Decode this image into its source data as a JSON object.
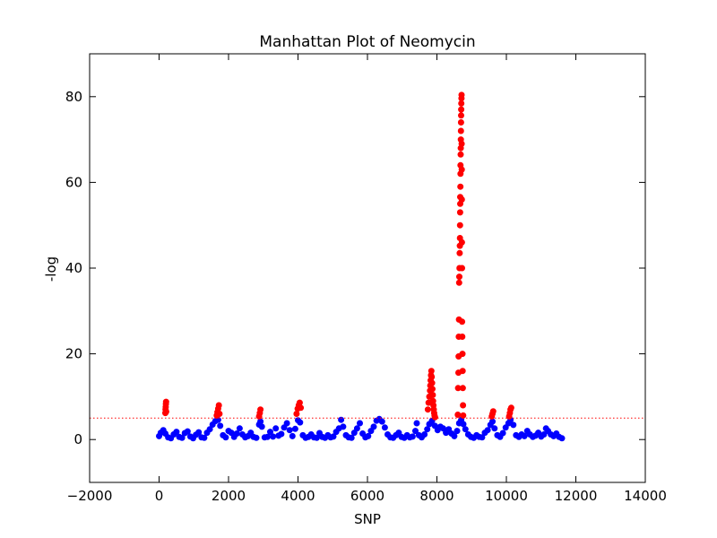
{
  "chart_data": {
    "type": "scatter",
    "title": "Manhattan Plot of Neomycin",
    "xlabel": "SNP",
    "ylabel": "-log",
    "xlim": [
      -2000,
      14000
    ],
    "ylim": [
      -10,
      90
    ],
    "xticks": [
      -2000,
      0,
      2000,
      4000,
      6000,
      8000,
      10000,
      12000,
      14000
    ],
    "yticks": [
      0,
      20,
      40,
      60,
      80
    ],
    "threshold": 5,
    "grid": false,
    "legend": "none",
    "colors": {
      "below_threshold": "#0000ff",
      "above_threshold": "#ff0000",
      "threshold_line": "#ff0000"
    },
    "series": [
      {
        "color": "#0000ff",
        "points": [
          [
            0,
            0.8
          ],
          [
            50,
            1.6
          ],
          [
            120,
            2.2
          ],
          [
            180,
            1.4
          ],
          [
            260,
            0.5
          ],
          [
            340,
            0.3
          ],
          [
            420,
            1.2
          ],
          [
            500,
            1.8
          ],
          [
            580,
            0.6
          ],
          [
            660,
            0.4
          ],
          [
            740,
            1.5
          ],
          [
            820,
            1.9
          ],
          [
            900,
            0.7
          ],
          [
            980,
            0.3
          ],
          [
            1060,
            1.1
          ],
          [
            1140,
            1.7
          ],
          [
            1220,
            0.5
          ],
          [
            1300,
            0.4
          ],
          [
            1380,
            1.6
          ],
          [
            1460,
            2.4
          ],
          [
            1540,
            3.5
          ],
          [
            1620,
            4.3
          ],
          [
            1700,
            4.6
          ],
          [
            1760,
            3.2
          ],
          [
            1840,
            1.0
          ],
          [
            1920,
            0.5
          ],
          [
            2000,
            2.0
          ],
          [
            2080,
            1.6
          ],
          [
            2160,
            0.6
          ],
          [
            2240,
            1.4
          ],
          [
            2320,
            2.6
          ],
          [
            2400,
            1.2
          ],
          [
            2480,
            0.5
          ],
          [
            2560,
            0.8
          ],
          [
            2640,
            1.6
          ],
          [
            2720,
            0.6
          ],
          [
            2800,
            0.4
          ],
          [
            2880,
            3.5
          ],
          [
            2920,
            4.2
          ],
          [
            2960,
            3.0
          ],
          [
            3040,
            0.5
          ],
          [
            3120,
            0.6
          ],
          [
            3200,
            1.8
          ],
          [
            3280,
            0.7
          ],
          [
            3360,
            2.6
          ],
          [
            3440,
            0.9
          ],
          [
            3520,
            1.3
          ],
          [
            3600,
            2.8
          ],
          [
            3680,
            3.8
          ],
          [
            3760,
            2.2
          ],
          [
            3840,
            0.8
          ],
          [
            3920,
            2.5
          ],
          [
            4000,
            4.5
          ],
          [
            4060,
            4.0
          ],
          [
            4140,
            1.0
          ],
          [
            4220,
            0.4
          ],
          [
            4300,
            0.6
          ],
          [
            4380,
            1.2
          ],
          [
            4460,
            0.5
          ],
          [
            4540,
            0.4
          ],
          [
            4620,
            1.5
          ],
          [
            4700,
            0.6
          ],
          [
            4780,
            0.4
          ],
          [
            4860,
            1.0
          ],
          [
            4940,
            0.5
          ],
          [
            5020,
            0.7
          ],
          [
            5100,
            1.8
          ],
          [
            5180,
            2.6
          ],
          [
            5240,
            4.6
          ],
          [
            5300,
            3.0
          ],
          [
            5380,
            1.0
          ],
          [
            5460,
            0.5
          ],
          [
            5540,
            0.4
          ],
          [
            5620,
            1.6
          ],
          [
            5700,
            2.6
          ],
          [
            5780,
            3.8
          ],
          [
            5860,
            1.4
          ],
          [
            5940,
            0.5
          ],
          [
            6020,
            0.8
          ],
          [
            6100,
            2.0
          ],
          [
            6180,
            3.0
          ],
          [
            6260,
            4.4
          ],
          [
            6340,
            4.8
          ],
          [
            6420,
            4.2
          ],
          [
            6500,
            2.8
          ],
          [
            6580,
            1.2
          ],
          [
            6660,
            0.5
          ],
          [
            6740,
            0.4
          ],
          [
            6820,
            1.0
          ],
          [
            6900,
            1.6
          ],
          [
            6980,
            0.6
          ],
          [
            7060,
            0.4
          ],
          [
            7140,
            1.0
          ],
          [
            7220,
            0.5
          ],
          [
            7300,
            0.7
          ],
          [
            7380,
            2.0
          ],
          [
            7420,
            3.8
          ],
          [
            7480,
            1.0
          ],
          [
            7560,
            0.5
          ],
          [
            7640,
            1.2
          ],
          [
            7720,
            2.4
          ],
          [
            7780,
            3.6
          ],
          [
            7860,
            4.4
          ],
          [
            7940,
            3.2
          ],
          [
            8020,
            2.2
          ],
          [
            8100,
            3.0
          ],
          [
            8180,
            2.6
          ],
          [
            8260,
            1.6
          ],
          [
            8340,
            2.4
          ],
          [
            8420,
            1.4
          ],
          [
            8500,
            0.8
          ],
          [
            8580,
            2.0
          ],
          [
            8640,
            3.8
          ],
          [
            8700,
            4.6
          ],
          [
            8760,
            3.6
          ],
          [
            8820,
            2.4
          ],
          [
            8900,
            1.2
          ],
          [
            8980,
            0.6
          ],
          [
            9060,
            0.4
          ],
          [
            9140,
            1.0
          ],
          [
            9220,
            0.6
          ],
          [
            9300,
            0.5
          ],
          [
            9380,
            1.6
          ],
          [
            9460,
            2.2
          ],
          [
            9540,
            3.4
          ],
          [
            9600,
            4.2
          ],
          [
            9660,
            2.6
          ],
          [
            9740,
            1.0
          ],
          [
            9820,
            0.6
          ],
          [
            9900,
            1.5
          ],
          [
            9980,
            2.8
          ],
          [
            10060,
            3.8
          ],
          [
            10120,
            4.6
          ],
          [
            10200,
            3.4
          ],
          [
            10280,
            1.0
          ],
          [
            10360,
            0.6
          ],
          [
            10440,
            1.2
          ],
          [
            10520,
            0.8
          ],
          [
            10600,
            2.0
          ],
          [
            10680,
            1.2
          ],
          [
            10760,
            0.6
          ],
          [
            10840,
            0.9
          ],
          [
            10920,
            1.6
          ],
          [
            11000,
            0.7
          ],
          [
            11080,
            1.2
          ],
          [
            11140,
            2.6
          ],
          [
            11200,
            2.0
          ],
          [
            11280,
            1.2
          ],
          [
            11360,
            0.8
          ],
          [
            11440,
            1.4
          ],
          [
            11520,
            0.6
          ],
          [
            11600,
            0.3
          ]
        ]
      },
      {
        "color": "#ff0000",
        "points": [
          [
            180,
            6.2
          ],
          [
            185,
            7.0
          ],
          [
            190,
            7.6
          ],
          [
            195,
            8.3
          ],
          [
            200,
            8.8
          ],
          [
            205,
            6.5
          ],
          [
            1660,
            5.6
          ],
          [
            1680,
            6.4
          ],
          [
            1700,
            7.2
          ],
          [
            1720,
            8.0
          ],
          [
            1740,
            6.0
          ],
          [
            2880,
            5.4
          ],
          [
            2900,
            6.2
          ],
          [
            2920,
            7.0
          ],
          [
            3960,
            6.0
          ],
          [
            3990,
            7.2
          ],
          [
            4020,
            8.0
          ],
          [
            4050,
            8.6
          ],
          [
            4080,
            7.4
          ],
          [
            7740,
            7.0
          ],
          [
            7760,
            8.6
          ],
          [
            7780,
            10.0
          ],
          [
            7800,
            11.4
          ],
          [
            7810,
            12.6
          ],
          [
            7820,
            13.8
          ],
          [
            7830,
            15.0
          ],
          [
            7840,
            16.0
          ],
          [
            7850,
            14.6
          ],
          [
            7860,
            13.2
          ],
          [
            7870,
            11.8
          ],
          [
            7880,
            10.4
          ],
          [
            7890,
            9.0
          ],
          [
            7900,
            8.0
          ],
          [
            7910,
            7.0
          ],
          [
            7920,
            6.2
          ],
          [
            7930,
            5.6
          ],
          [
            7945,
            5.2
          ],
          [
            8600,
            5.8
          ],
          [
            8610,
            12.0
          ],
          [
            8620,
            15.6
          ],
          [
            8625,
            19.4
          ],
          [
            8630,
            24.0
          ],
          [
            8635,
            28.0
          ],
          [
            8640,
            36.6
          ],
          [
            8645,
            38.0
          ],
          [
            8650,
            40.0
          ],
          [
            8655,
            43.5
          ],
          [
            8660,
            45.2
          ],
          [
            8662,
            47.0
          ],
          [
            8665,
            50.0
          ],
          [
            8668,
            53.0
          ],
          [
            8670,
            55.0
          ],
          [
            8672,
            56.6
          ],
          [
            8675,
            59.0
          ],
          [
            8678,
            62.0
          ],
          [
            8680,
            64.0
          ],
          [
            8683,
            66.5
          ],
          [
            8686,
            68.0
          ],
          [
            8689,
            70.0
          ],
          [
            8692,
            72.0
          ],
          [
            8695,
            74.0
          ],
          [
            8698,
            75.6
          ],
          [
            8700,
            77.0
          ],
          [
            8703,
            78.4
          ],
          [
            8706,
            79.6
          ],
          [
            8709,
            80.4
          ],
          [
            8712,
            69.0
          ],
          [
            8715,
            63.0
          ],
          [
            8718,
            56.0
          ],
          [
            8720,
            46.0
          ],
          [
            8723,
            40.0
          ],
          [
            8726,
            27.5
          ],
          [
            8730,
            24.0
          ],
          [
            8735,
            20.0
          ],
          [
            8740,
            16.0
          ],
          [
            8745,
            12.0
          ],
          [
            8750,
            8.0
          ],
          [
            8755,
            5.6
          ],
          [
            9580,
            5.4
          ],
          [
            9600,
            6.0
          ],
          [
            9620,
            6.6
          ],
          [
            10080,
            5.4
          ],
          [
            10100,
            6.2
          ],
          [
            10120,
            7.0
          ],
          [
            10140,
            7.4
          ]
        ]
      }
    ]
  }
}
